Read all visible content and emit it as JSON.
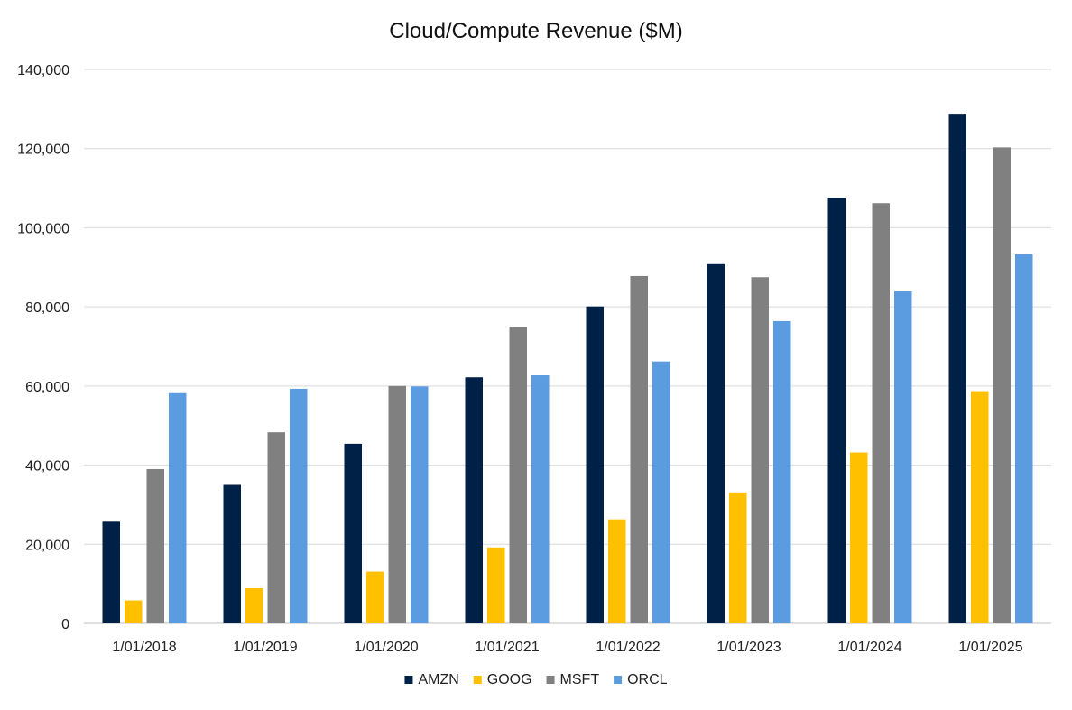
{
  "chart_data": {
    "type": "bar",
    "title": "Cloud/Compute Revenue ($M)",
    "xlabel": "",
    "ylabel": "",
    "ylim": [
      0,
      140000
    ],
    "yticks": [
      0,
      20000,
      40000,
      60000,
      80000,
      100000,
      120000,
      140000
    ],
    "ytick_labels": [
      "0",
      "20,000",
      "40,000",
      "60,000",
      "80,000",
      "100,000",
      "120,000",
      "140,000"
    ],
    "categories": [
      "1/01/2018",
      "1/01/2019",
      "1/01/2020",
      "1/01/2021",
      "1/01/2022",
      "1/01/2023",
      "1/01/2024",
      "1/01/2025"
    ],
    "grid": "horizontal",
    "legend_position": "bottom",
    "series": [
      {
        "name": "AMZN",
        "color": "#002147",
        "values": [
          25700,
          35000,
          45400,
          62200,
          80100,
          90800,
          107600,
          128800
        ]
      },
      {
        "name": "GOOG",
        "color": "#FFC000",
        "values": [
          5800,
          8900,
          13100,
          19200,
          26300,
          33100,
          43200,
          58700
        ]
      },
      {
        "name": "MSFT",
        "color": "#808080",
        "values": [
          39000,
          48300,
          60000,
          75000,
          87800,
          87500,
          106200,
          120300
        ]
      },
      {
        "name": "ORCL",
        "color": "#5B9BE0",
        "values": [
          58200,
          59300,
          59900,
          62700,
          66200,
          76400,
          83900,
          93300
        ]
      }
    ]
  }
}
